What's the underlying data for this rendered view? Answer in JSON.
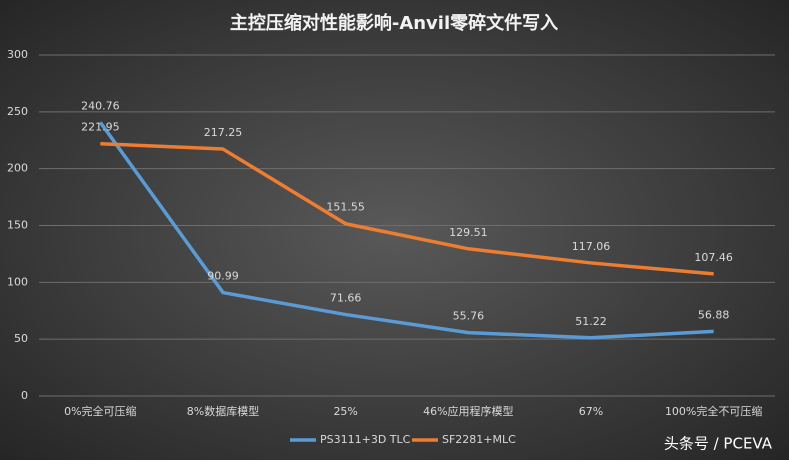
{
  "chart_data": {
    "type": "line",
    "title": "主控压缩对性能影响-Anvil零碎文件写入",
    "categories": [
      "0%完全可压缩",
      "8%数据库模型",
      "25%",
      "46%应用程序模型",
      "67%",
      "100%完全不可压缩"
    ],
    "series": [
      {
        "name": "PS3111+3D TLC",
        "color": "#5b9bd5",
        "values": [
          240.76,
          90.99,
          71.66,
          55.76,
          51.22,
          56.88
        ]
      },
      {
        "name": "SF2281+MLC",
        "color": "#ed7d31",
        "values": [
          221.95,
          217.25,
          151.55,
          129.51,
          117.06,
          107.46
        ]
      }
    ],
    "ylim": [
      0,
      300
    ],
    "yticks": [
      0,
      50,
      100,
      150,
      200,
      250,
      300
    ],
    "grid": true,
    "legend": "bottom",
    "watermark": "头条号 / PCEVA"
  }
}
